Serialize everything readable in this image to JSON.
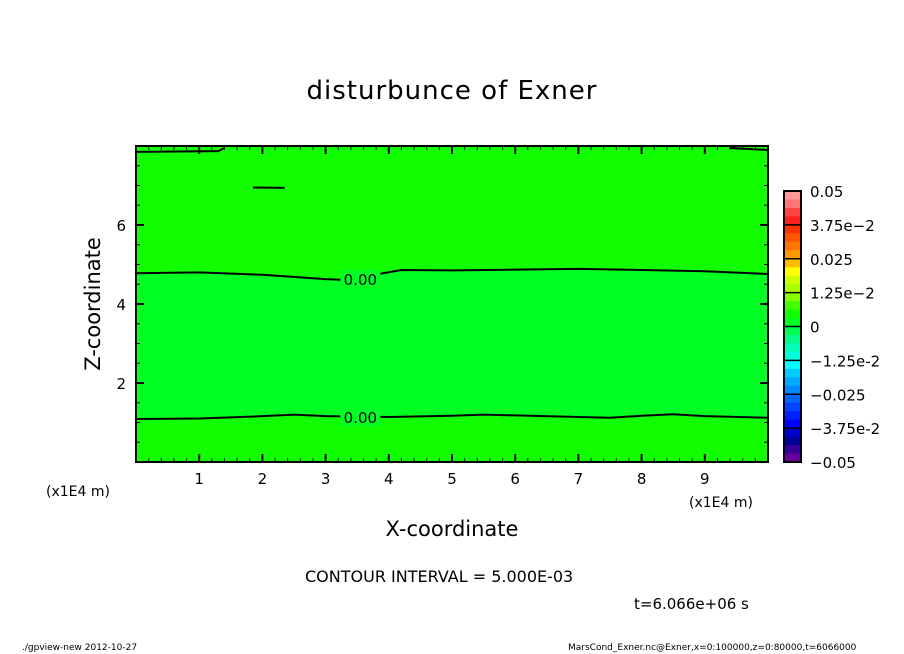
{
  "chart_data": {
    "type": "contour",
    "title": "disturbunce of Exner",
    "xlabel": "X-coordinate",
    "ylabel": "Z-coordinate",
    "x_unit": "(x1E4 m)",
    "z_unit": "(x1E4 m)",
    "xlim": [
      0,
      10
    ],
    "ylim": [
      0,
      8
    ],
    "x_ticks": [
      1,
      2,
      3,
      4,
      5,
      6,
      7,
      8,
      9
    ],
    "y_ticks": [
      2,
      4,
      6
    ],
    "contour_interval": "CONTOUR INTERVAL = 5.000E-03",
    "contour_label": "0.00",
    "contours": [
      {
        "level": 0,
        "points": [
          [
            0,
            4.78
          ],
          [
            1,
            4.8
          ],
          [
            2,
            4.74
          ],
          [
            3,
            4.63
          ],
          [
            3.3,
            4.61
          ],
          [
            4.2,
            4.86
          ],
          [
            5,
            4.85
          ],
          [
            6,
            4.87
          ],
          [
            7,
            4.89
          ],
          [
            8,
            4.86
          ],
          [
            9,
            4.83
          ],
          [
            10,
            4.76
          ]
        ]
      },
      {
        "level": 0,
        "points": [
          [
            0,
            1.09
          ],
          [
            1,
            1.1
          ],
          [
            2,
            1.16
          ],
          [
            2.5,
            1.2
          ],
          [
            3,
            1.16
          ],
          [
            4,
            1.14
          ],
          [
            5,
            1.17
          ],
          [
            5.5,
            1.2
          ],
          [
            6,
            1.18
          ],
          [
            7,
            1.14
          ],
          [
            7.5,
            1.12
          ],
          [
            8,
            1.17
          ],
          [
            8.5,
            1.21
          ],
          [
            9,
            1.16
          ],
          [
            10,
            1.12
          ]
        ]
      },
      {
        "level": 0,
        "points": [
          [
            1.85,
            6.95
          ],
          [
            2.35,
            6.94
          ]
        ]
      },
      {
        "level": 0,
        "points": [
          [
            0,
            7.85
          ],
          [
            1.3,
            7.87
          ],
          [
            1.4,
            7.95
          ]
        ]
      },
      {
        "level": 0,
        "points": [
          [
            9.4,
            7.95
          ],
          [
            10,
            7.9
          ]
        ]
      }
    ],
    "fill_colors": {
      "outer": "#11ff00",
      "middle": "#00ff22"
    },
    "colorbar": {
      "labels": [
        "0.05",
        "3.75e-2",
        "0.025",
        "1.25e-2",
        "0",
        "-1.25e-2",
        "-0.025",
        "-3.75e-2",
        "-0.05"
      ],
      "colors": [
        "#ff9999",
        "#ff7777",
        "#ff4444",
        "#ff2020",
        "#ff3300",
        "#ff5500",
        "#ff7700",
        "#ff9900",
        "#ffbb00",
        "#ffff00",
        "#ccff00",
        "#aaff00",
        "#88ff00",
        "#44ff00",
        "#11ff00",
        "#00ff22",
        "#00ff55",
        "#00ff88",
        "#00ffbb",
        "#00ffdd",
        "#00ffff",
        "#00ccff",
        "#00aaff",
        "#0088ff",
        "#0066ff",
        "#0044ff",
        "#0022ff",
        "#0000ff",
        "#0000cc",
        "#000099",
        "#330099",
        "#660099"
      ]
    },
    "time_label": "t=6.066e+06 s"
  },
  "footer": {
    "left": "./gpview-new  2012-10-27",
    "right": "MarsCond_Exner.nc@Exner,x=0:100000,z=0:80000,t=6066000"
  }
}
